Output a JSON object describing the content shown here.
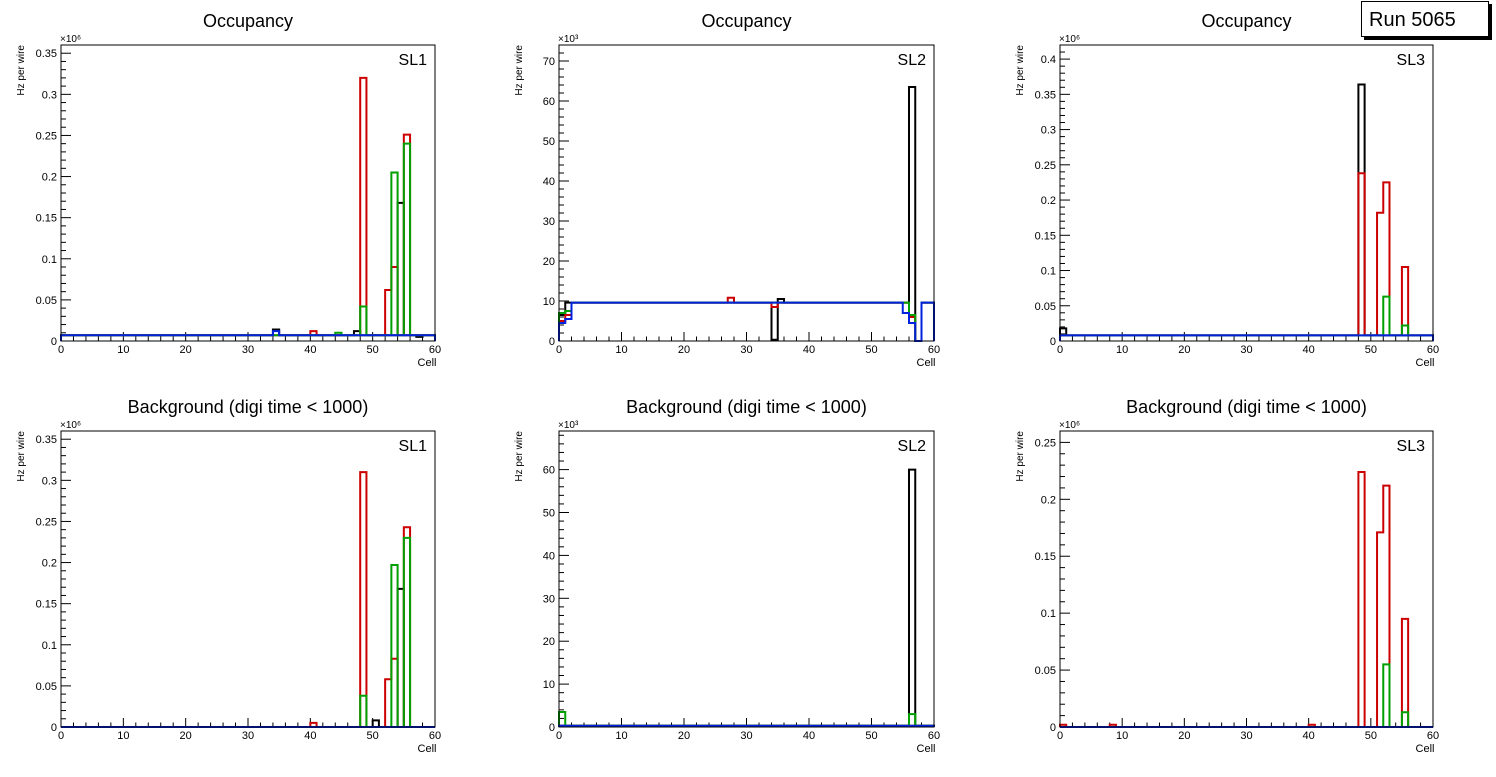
{
  "run_label": "Run 5065",
  "colors": {
    "layer1": "#000000",
    "layer2": "#cc0000",
    "layer3": "#00a000",
    "layer4": "#0022dd"
  },
  "chart_data": [
    {
      "id": "occ-sl1",
      "type": "histogram",
      "title": "Occupancy",
      "label": "SL1",
      "xlabel": "Cell",
      "ylabel": "Hz per wire",
      "exponent": "×10⁶",
      "xlim": [
        0,
        60
      ],
      "ylim": [
        0,
        0.36
      ],
      "xticks": [
        0,
        10,
        20,
        30,
        40,
        50,
        60
      ],
      "yticks": [
        0,
        0.05,
        0.1,
        0.15,
        0.2,
        0.25,
        0.3,
        0.35
      ],
      "ytick_labels": [
        "0",
        "0.05",
        "0.1",
        "0.15",
        "0.2",
        "0.25",
        "0.3",
        "0.35"
      ],
      "baseline": 0.007,
      "series": [
        {
          "name": "layer1",
          "color": "#000000",
          "peaks": [
            [
              34,
              0.014
            ],
            [
              47,
              0.012
            ],
            [
              54,
              0.168
            ],
            [
              57,
              0.005
            ]
          ]
        },
        {
          "name": "layer2",
          "color": "#cc0000",
          "peaks": [
            [
              40,
              0.012
            ],
            [
              48,
              0.32
            ],
            [
              52,
              0.062
            ],
            [
              53,
              0.09
            ],
            [
              55,
              0.251
            ]
          ]
        },
        {
          "name": "layer3",
          "color": "#00a000",
          "peaks": [
            [
              44,
              0.01
            ],
            [
              48,
              0.042
            ],
            [
              53,
              0.205
            ],
            [
              55,
              0.24
            ]
          ]
        },
        {
          "name": "layer4",
          "color": "#0022dd",
          "peaks": [
            [
              34,
              0.012
            ]
          ]
        }
      ]
    },
    {
      "id": "occ-sl2",
      "type": "histogram",
      "title": "Occupancy",
      "label": "SL2",
      "xlabel": "Cell",
      "ylabel": "Hz per wire",
      "exponent": "×10³",
      "xlim": [
        0,
        60
      ],
      "ylim": [
        0,
        74
      ],
      "xticks": [
        0,
        10,
        20,
        30,
        40,
        50,
        60
      ],
      "yticks": [
        0,
        10,
        20,
        30,
        40,
        50,
        60,
        70
      ],
      "ytick_labels": [
        "0",
        "10",
        "20",
        "30",
        "40",
        "50",
        "60",
        "70"
      ],
      "baseline": 9.6,
      "series": [
        {
          "name": "layer1",
          "color": "#000000",
          "peaks": [
            [
              0,
              6.5
            ],
            [
              34,
              0.3
            ],
            [
              35,
              10.5
            ],
            [
              56,
              63.5
            ],
            [
              57,
              0
            ]
          ]
        },
        {
          "name": "layer2",
          "color": "#cc0000",
          "peaks": [
            [
              0,
              5
            ],
            [
              1,
              6.5
            ],
            [
              27,
              10.8
            ],
            [
              34,
              8.5
            ],
            [
              56,
              6
            ],
            [
              57,
              0
            ]
          ]
        },
        {
          "name": "layer3",
          "color": "#00a000",
          "peaks": [
            [
              0,
              7
            ],
            [
              1,
              7.5
            ],
            [
              56,
              6.5
            ],
            [
              57,
              0
            ]
          ]
        },
        {
          "name": "layer4",
          "color": "#0022dd",
          "peaks": [
            [
              0,
              4.5
            ],
            [
              1,
              5.5
            ],
            [
              55,
              7
            ],
            [
              56,
              4.5
            ],
            [
              57,
              0
            ]
          ]
        }
      ]
    },
    {
      "id": "occ-sl3",
      "type": "histogram",
      "title": "Occupancy",
      "label": "SL3",
      "xlabel": "Cell",
      "ylabel": "Hz per wire",
      "exponent": "×10⁶",
      "xlim": [
        0,
        60
      ],
      "ylim": [
        0,
        0.42
      ],
      "xticks": [
        0,
        10,
        20,
        30,
        40,
        50,
        60
      ],
      "yticks": [
        0,
        0.05,
        0.1,
        0.15,
        0.2,
        0.25,
        0.3,
        0.35,
        0.4
      ],
      "ytick_labels": [
        "0",
        "0.05",
        "0.1",
        "0.15",
        "0.2",
        "0.25",
        "0.3",
        "0.35",
        "0.4"
      ],
      "baseline": 0.008,
      "series": [
        {
          "name": "layer1",
          "color": "#000000",
          "peaks": [
            [
              0,
              0.018
            ],
            [
              48,
              0.364
            ]
          ]
        },
        {
          "name": "layer2",
          "color": "#cc0000",
          "peaks": [
            [
              48,
              0.238
            ],
            [
              51,
              0.182
            ],
            [
              52,
              0.225
            ],
            [
              55,
              0.105
            ]
          ]
        },
        {
          "name": "layer3",
          "color": "#00a000",
          "peaks": [
            [
              52,
              0.063
            ],
            [
              55,
              0.022
            ]
          ]
        },
        {
          "name": "layer4",
          "color": "#0022dd",
          "peaks": []
        }
      ]
    },
    {
      "id": "bkg-sl1",
      "type": "histogram",
      "title": "Background (digi time < 1000)",
      "label": "SL1",
      "xlabel": "Cell",
      "ylabel": "Hz per wire",
      "exponent": "×10⁶",
      "xlim": [
        0,
        60
      ],
      "ylim": [
        0,
        0.36
      ],
      "xticks": [
        0,
        10,
        20,
        30,
        40,
        50,
        60
      ],
      "yticks": [
        0,
        0.05,
        0.1,
        0.15,
        0.2,
        0.25,
        0.3,
        0.35
      ],
      "ytick_labels": [
        "0",
        "0.05",
        "0.1",
        "0.15",
        "0.2",
        "0.25",
        "0.3",
        "0.35"
      ],
      "baseline": 0,
      "series": [
        {
          "name": "layer1",
          "color": "#000000",
          "peaks": [
            [
              50,
              0.008
            ],
            [
              54,
              0.168
            ]
          ]
        },
        {
          "name": "layer2",
          "color": "#cc0000",
          "peaks": [
            [
              40,
              0.005
            ],
            [
              48,
              0.31
            ],
            [
              52,
              0.058
            ],
            [
              53,
              0.083
            ],
            [
              55,
              0.243
            ]
          ]
        },
        {
          "name": "layer3",
          "color": "#00a000",
          "peaks": [
            [
              48,
              0.038
            ],
            [
              53,
              0.197
            ],
            [
              55,
              0.23
            ]
          ]
        },
        {
          "name": "layer4",
          "color": "#0022dd",
          "peaks": []
        }
      ]
    },
    {
      "id": "bkg-sl2",
      "type": "histogram",
      "title": "Background (digi time < 1000)",
      "label": "SL2",
      "xlabel": "Cell",
      "ylabel": "Hz per wire",
      "exponent": "×10³",
      "xlim": [
        0,
        60
      ],
      "ylim": [
        0,
        69
      ],
      "xticks": [
        0,
        10,
        20,
        30,
        40,
        50,
        60
      ],
      "yticks": [
        0,
        10,
        20,
        30,
        40,
        50,
        60
      ],
      "ytick_labels": [
        "0",
        "10",
        "20",
        "30",
        "40",
        "50",
        "60"
      ],
      "baseline": 0.3,
      "series": [
        {
          "name": "layer1",
          "color": "#000000",
          "peaks": [
            [
              56,
              60
            ]
          ]
        },
        {
          "name": "layer2",
          "color": "#cc0000",
          "peaks": []
        },
        {
          "name": "layer3",
          "color": "#00a000",
          "peaks": [
            [
              0,
              3.5
            ],
            [
              56,
              3
            ]
          ]
        },
        {
          "name": "layer4",
          "color": "#0022dd",
          "peaks": []
        }
      ]
    },
    {
      "id": "bkg-sl3",
      "type": "histogram",
      "title": "Background (digi time < 1000)",
      "label": "SL3",
      "xlabel": "Cell",
      "ylabel": "Hz per wire",
      "exponent": "×10⁶",
      "xlim": [
        0,
        60
      ],
      "ylim": [
        0,
        0.26
      ],
      "xticks": [
        0,
        10,
        20,
        30,
        40,
        50,
        60
      ],
      "yticks": [
        0,
        0.05,
        0.1,
        0.15,
        0.2,
        0.25
      ],
      "ytick_labels": [
        "0",
        "0.05",
        "0.1",
        "0.15",
        "0.2",
        "0.25"
      ],
      "baseline": 0,
      "series": [
        {
          "name": "layer1",
          "color": "#000000",
          "peaks": []
        },
        {
          "name": "layer2",
          "color": "#cc0000",
          "peaks": [
            [
              0,
              0.002
            ],
            [
              8,
              0.002
            ],
            [
              40,
              0.002
            ],
            [
              48,
              0.224
            ],
            [
              51,
              0.171
            ],
            [
              52,
              0.212
            ],
            [
              55,
              0.095
            ]
          ]
        },
        {
          "name": "layer3",
          "color": "#00a000",
          "peaks": [
            [
              52,
              0.055
            ],
            [
              55,
              0.013
            ]
          ]
        },
        {
          "name": "layer4",
          "color": "#0022dd",
          "peaks": []
        }
      ]
    }
  ]
}
